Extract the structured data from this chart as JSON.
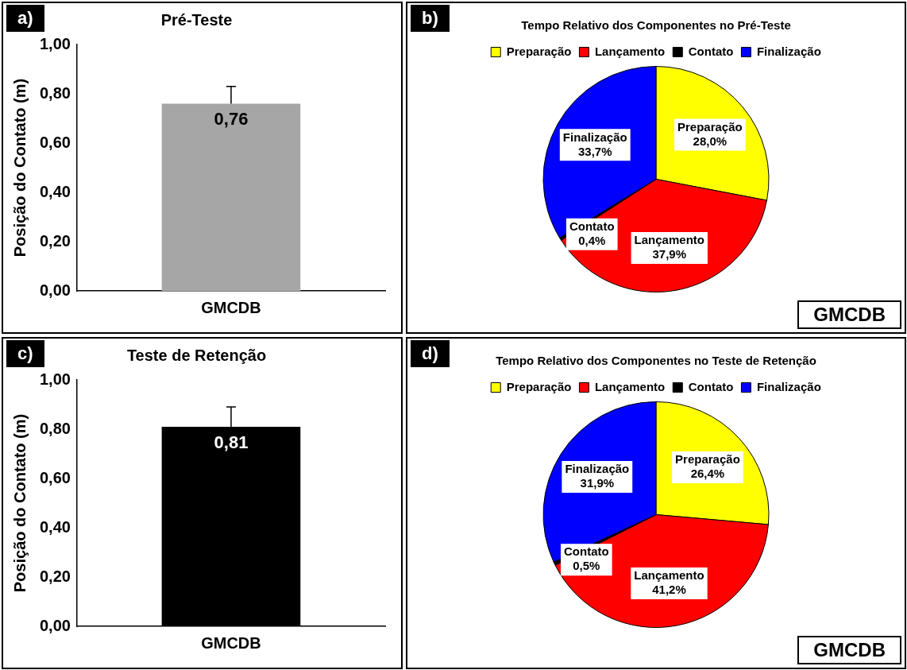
{
  "chart_data": [
    {
      "type": "bar",
      "title": "Pré-Teste",
      "ylabel": "Posição do Contato (m)",
      "categories": [
        "GMCDB"
      ],
      "values": [
        0.76
      ],
      "colors": [
        "#a6a6a6"
      ],
      "errors": [
        0.07
      ],
      "value_labels": [
        "0,76"
      ],
      "ylim": [
        0,
        1
      ],
      "yticks": [
        {
          "value": 0,
          "label": "0,00"
        },
        {
          "value": 0.2,
          "label": "0,20"
        },
        {
          "value": 0.4,
          "label": "0,40"
        },
        {
          "value": 0.6,
          "label": "0,60"
        },
        {
          "value": 0.8,
          "label": "0,80"
        },
        {
          "value": 1,
          "label": "1,00"
        }
      ],
      "grid": false,
      "legend": false,
      "annotations": [
        "a)"
      ]
    },
    {
      "type": "pie",
      "title": "Tempo Relativo dos Componentes no Pré-Teste",
      "categories": [
        "Preparação",
        "Lançamento",
        "Contato",
        "Finalização"
      ],
      "values": [
        28.0,
        37.9,
        0.4,
        33.7
      ],
      "colors": [
        "#ffff00",
        "#ff0000",
        "#000000",
        "#0000ff"
      ],
      "value_labels": [
        "28,0%",
        "37,9%",
        "0,4%",
        "33,7%"
      ],
      "legend": "top",
      "annotations": [
        "b)",
        "GMCDB"
      ]
    },
    {
      "type": "bar",
      "title": "Teste de Retenção",
      "ylabel": "Posição do Contato (m)",
      "categories": [
        "GMCDB"
      ],
      "values": [
        0.81
      ],
      "colors": [
        "#000000"
      ],
      "errors": [
        0.08
      ],
      "value_labels": [
        "0,81"
      ],
      "ylim": [
        0,
        1
      ],
      "yticks": [
        {
          "value": 0,
          "label": "0,00"
        },
        {
          "value": 0.2,
          "label": "0,20"
        },
        {
          "value": 0.4,
          "label": "0,40"
        },
        {
          "value": 0.6,
          "label": "0,60"
        },
        {
          "value": 0.8,
          "label": "0,80"
        },
        {
          "value": 1,
          "label": "1,00"
        }
      ],
      "grid": false,
      "legend": false,
      "annotations": [
        "c)"
      ]
    },
    {
      "type": "pie",
      "title": "Tempo Relativo dos Componentes no Teste de Retenção",
      "categories": [
        "Preparação",
        "Lançamento",
        "Contato",
        "Finalização"
      ],
      "values": [
        26.4,
        41.2,
        0.5,
        31.9
      ],
      "colors": [
        "#ffff00",
        "#ff0000",
        "#000000",
        "#0000ff"
      ],
      "value_labels": [
        "26,4%",
        "41,2%",
        "0,5%",
        "31,9%"
      ],
      "legend": "top",
      "annotations": [
        "d)",
        "GMCDB"
      ]
    }
  ]
}
